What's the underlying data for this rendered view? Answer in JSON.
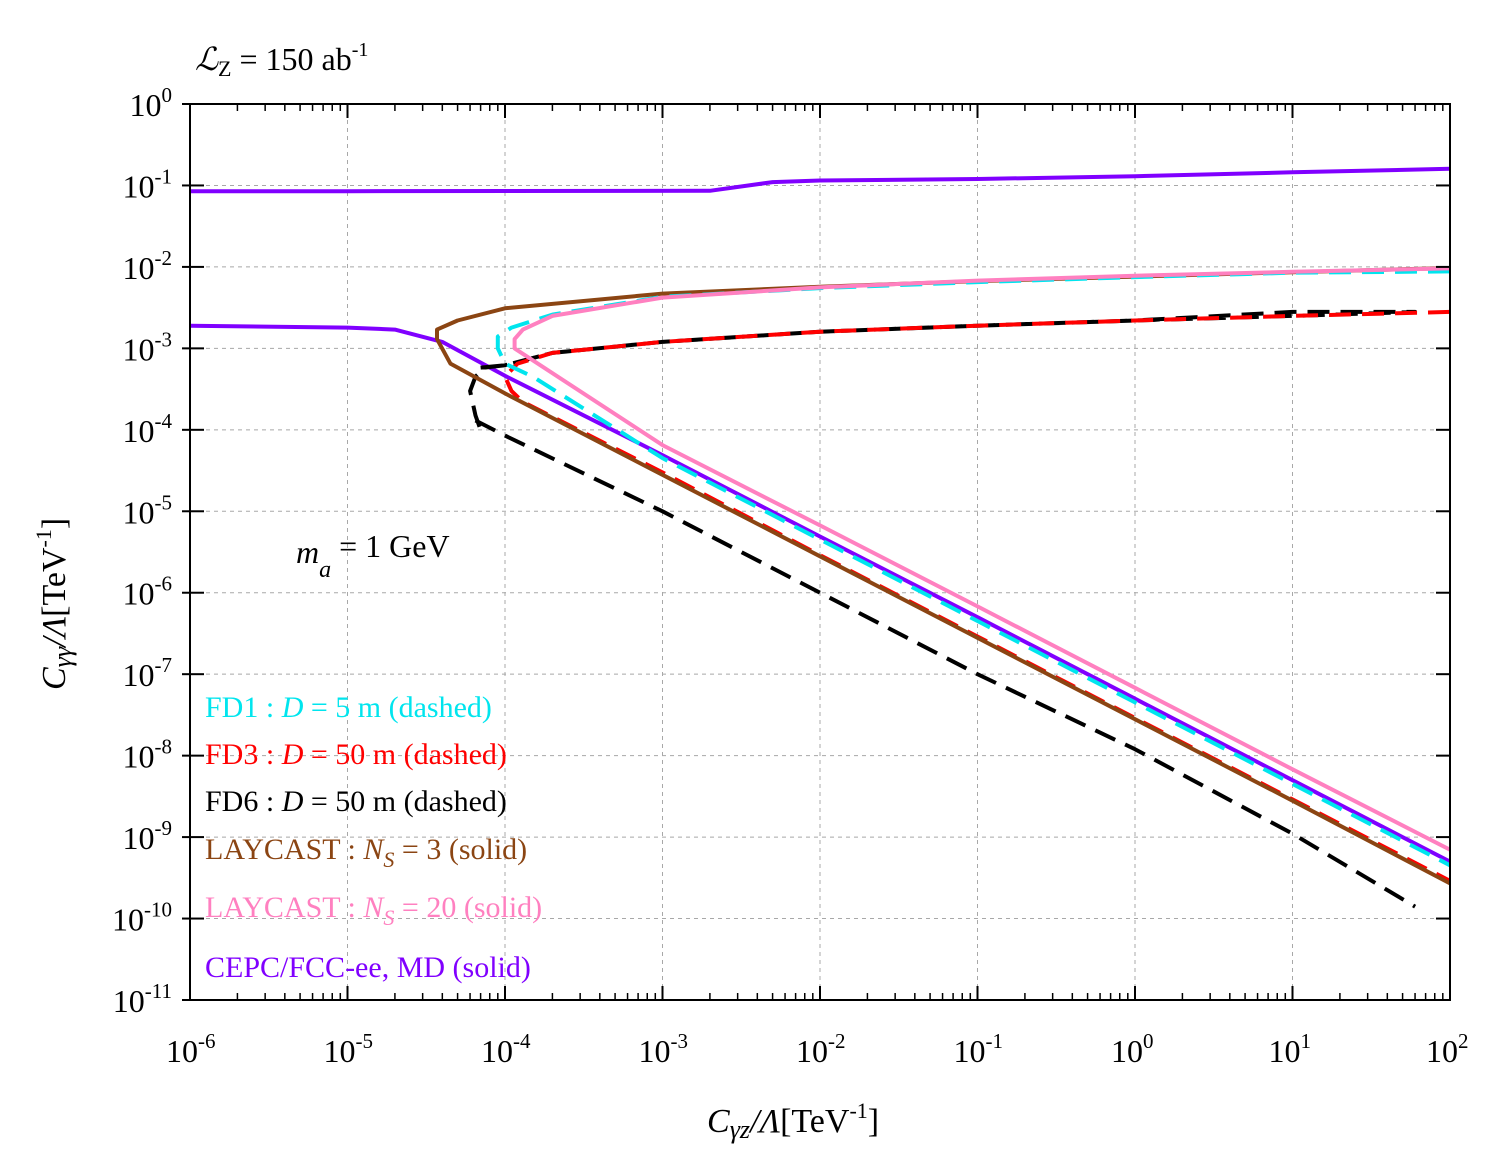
{
  "chart_data": {
    "type": "line",
    "x_scale": "log",
    "y_scale": "log",
    "xlim": [
      1e-06,
      100
    ],
    "ylim": [
      1e-11,
      1
    ],
    "x_tick_bases": [
      "10",
      "10",
      "10",
      "10",
      "10",
      "10",
      "10",
      "10",
      "10"
    ],
    "x_tick_exps": [
      "-6",
      "-5",
      "-4",
      "-3",
      "-2",
      "-1",
      "0",
      "1",
      "2"
    ],
    "y_tick_bases": [
      "10",
      "10",
      "10",
      "10",
      "10",
      "10",
      "10",
      "10",
      "10",
      "10",
      "10",
      "10"
    ],
    "y_tick_exps": [
      "0",
      "-1",
      "-2",
      "-3",
      "-4",
      "-5",
      "-6",
      "-7",
      "-8",
      "-9",
      "-10",
      "-11"
    ],
    "xlabel": {
      "c": "C",
      "sub": "γz",
      "slash": "/",
      "lam": "Λ",
      "unit_pre": "[TeV",
      "unit_exp": "-1",
      "unit_post": "]"
    },
    "ylabel": {
      "c": "C",
      "sub": "γγ",
      "slash": "/",
      "lam": "Λ",
      "unit_pre": "[TeV",
      "unit_exp": "-1",
      "unit_post": "]"
    },
    "luminosity": {
      "sym": "ℒ",
      "sub": "Z",
      "text": " = 150 ab",
      "exp": "-1"
    },
    "mass": {
      "sym": "m",
      "sub": "a",
      "text": " = 1 GeV"
    },
    "legend": {
      "placement": "lower-left",
      "entries": [
        {
          "pre": "FD1 : ",
          "var": "D",
          "varsub": "",
          "post": " = 5 m (dashed)",
          "color": "#00e5ee"
        },
        {
          "pre": "FD3 : ",
          "var": "D",
          "varsub": "",
          "post": " = 50 m (dashed)",
          "color": "#ff0000"
        },
        {
          "pre": "FD6 : ",
          "var": "D",
          "varsub": "",
          "post": " = 50 m (dashed)",
          "color": "#000000"
        },
        {
          "pre": "LAYCAST : ",
          "var": "N",
          "varsub": "S",
          "post": " = 3 (solid)",
          "color": "#8b4513"
        },
        {
          "pre": "LAYCAST : ",
          "var": "N",
          "varsub": "S",
          "post": " = 20 (solid)",
          "color": "#ff80c0"
        },
        {
          "pre": "CEPC/FCC-ee, MD (solid)",
          "var": "",
          "varsub": "",
          "post": "",
          "color": "#8000ff"
        }
      ]
    },
    "series": [
      {
        "name": "CEPC/FCC-ee MD upper",
        "color": "#8000ff",
        "dash": false,
        "x": [
          1e-06,
          1e-05,
          0.002,
          0.005,
          0.01,
          0.1,
          1,
          10,
          100
        ],
        "y": [
          0.085,
          0.085,
          0.086,
          0.11,
          0.115,
          0.12,
          0.13,
          0.145,
          0.16
        ]
      },
      {
        "name": "CEPC/FCC-ee MD lower",
        "color": "#8000ff",
        "dash": false,
        "x": [
          1e-06,
          1e-05,
          2e-05,
          4e-05,
          0.0001,
          0.001,
          0.01,
          0.1,
          1,
          10,
          100
        ],
        "y": [
          0.0019,
          0.0018,
          0.0017,
          0.0012,
          0.00046,
          4.9e-05,
          4.9e-06,
          5e-07,
          5e-08,
          5e-09,
          5e-10
        ]
      },
      {
        "name": "FD6 : D = 50 m",
        "color": "#000000",
        "dash": true,
        "x": [
          7e-05,
          0.0001,
          0.0002,
          0.001,
          0.01,
          0.1,
          1,
          10,
          60,
          10,
          1,
          0.1,
          0.01,
          0.001,
          0.0002,
          0.0001,
          7.5e-05,
          6.5e-05,
          6e-05,
          6.5e-05,
          7e-05
        ],
        "y": [
          0.00058,
          0.00062,
          0.00088,
          0.0012,
          0.0016,
          0.0019,
          0.0022,
          0.0025,
          0.0028,
          0.0028,
          0.0022,
          0.0019,
          0.0016,
          0.0012,
          0.00088,
          0.00062,
          0.00058,
          0.00045,
          0.0003,
          0.00015,
          0.0001
        ]
      },
      {
        "name": "FD6 : D = 50 m (lower)",
        "color": "#000000",
        "dash": true,
        "x": [
          6.5e-05,
          0.0001,
          0.001,
          0.01,
          0.1,
          1,
          10,
          60
        ],
        "y": [
          0.00013,
          8.5e-05,
          1e-05,
          1e-06,
          1e-07,
          1.2e-08,
          1.1e-09,
          1.4e-10
        ]
      },
      {
        "name": "FD3 : D = 50 m",
        "color": "#ff0000",
        "dash": true,
        "x": [
          100,
          10,
          1,
          0.1,
          0.01,
          0.001,
          0.0002,
          0.00012,
          0.0001,
          0.00011,
          0.00013,
          0.001,
          0.01,
          0.1,
          1,
          10,
          100
        ],
        "y": [
          0.0028,
          0.0025,
          0.0022,
          0.0019,
          0.0016,
          0.0012,
          0.00088,
          0.00065,
          0.00045,
          0.0003,
          0.00022,
          3e-05,
          2.9e-06,
          2.9e-07,
          2.9e-08,
          2.9e-09,
          2.9e-10
        ]
      },
      {
        "name": "LAYCAST : Ns = 3",
        "color": "#8b4513",
        "dash": false,
        "x": [
          100,
          10,
          1,
          0.1,
          0.01,
          0.001,
          0.0001,
          5e-05,
          3.7e-05,
          3.7e-05,
          4.5e-05,
          0.0001,
          0.001,
          0.01,
          0.1,
          1,
          10,
          100
        ],
        "y": [
          0.0097,
          0.0086,
          0.0076,
          0.0067,
          0.0057,
          0.0047,
          0.0031,
          0.0022,
          0.0017,
          0.0013,
          0.00065,
          0.00028,
          2.8e-05,
          2.8e-06,
          2.8e-07,
          2.8e-08,
          2.8e-09,
          2.7e-10
        ]
      },
      {
        "name": "FD1 : D = 5 m",
        "color": "#00e5ee",
        "dash": true,
        "x": [
          100,
          10,
          1,
          0.1,
          0.01,
          0.001,
          0.0002,
          0.00011,
          9e-05,
          9e-05,
          0.0001,
          0.00015,
          0.001,
          0.01,
          0.1,
          1,
          10,
          100
        ],
        "y": [
          0.0088,
          0.0085,
          0.0075,
          0.0065,
          0.0055,
          0.0043,
          0.0026,
          0.0018,
          0.0014,
          0.001,
          0.00065,
          0.00045,
          4.5e-05,
          4.5e-06,
          4.5e-07,
          4.5e-08,
          4.5e-09,
          4.5e-10
        ]
      },
      {
        "name": "LAYCAST : Ns = 20",
        "color": "#ff80c0",
        "dash": false,
        "x": [
          100,
          10,
          1,
          0.1,
          0.01,
          0.001,
          0.0002,
          0.00013,
          0.000115,
          0.000115,
          0.00014,
          0.001,
          0.01,
          0.1,
          1,
          10,
          100
        ],
        "y": [
          0.0096,
          0.0087,
          0.0078,
          0.0068,
          0.0056,
          0.0042,
          0.0025,
          0.0017,
          0.0013,
          0.001,
          0.00078,
          6.5e-05,
          6.7e-06,
          6.8e-07,
          6.8e-08,
          6.8e-09,
          7e-10
        ]
      }
    ]
  }
}
